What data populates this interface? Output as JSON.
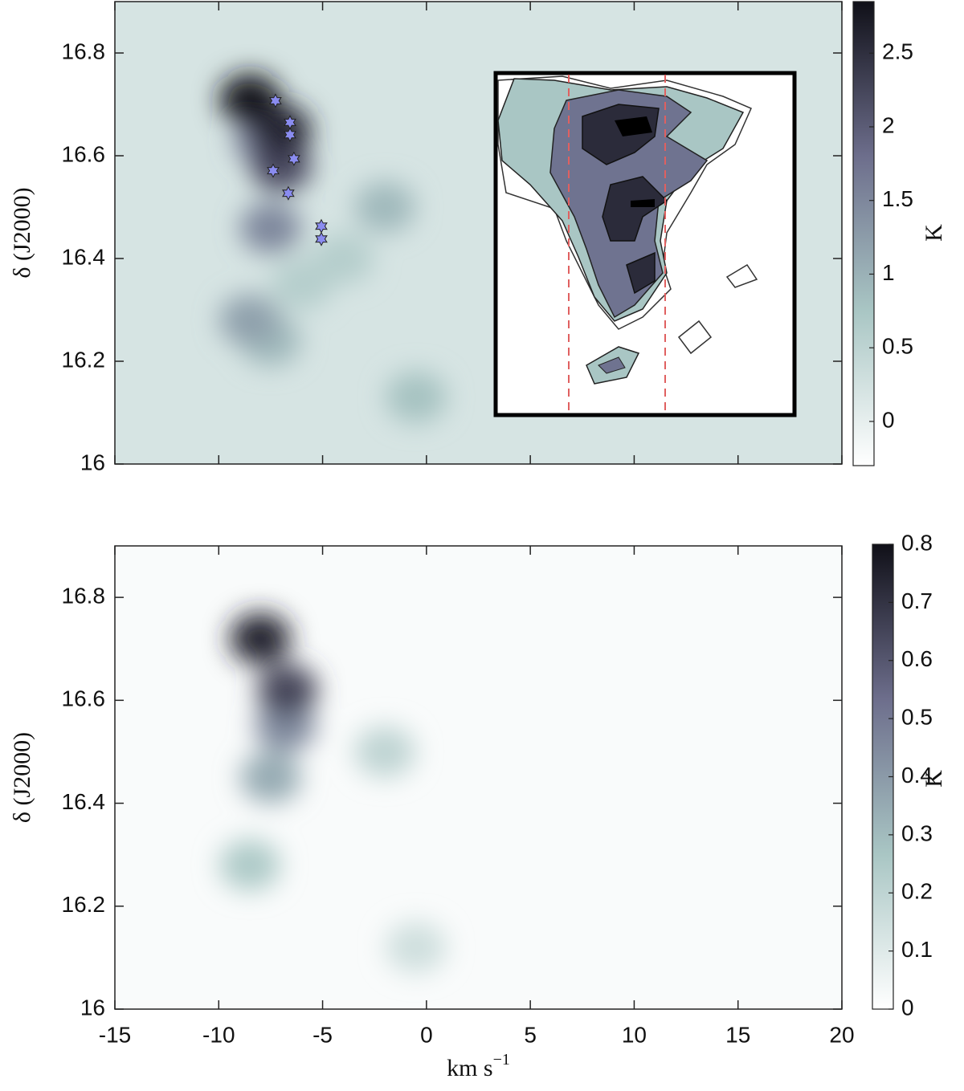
{
  "chart_data": [
    {
      "type": "heatmap",
      "ylabel": "δ (J2000)",
      "cbar_label": "K",
      "xlim": [
        -15,
        20
      ],
      "ylim": [
        16,
        16.9
      ],
      "xticks": [
        -15,
        -10,
        -5,
        0,
        5,
        10,
        15,
        20
      ],
      "yticks": [
        16,
        16.2,
        16.4,
        16.6,
        16.8
      ],
      "clim": [
        -0.3,
        2.85
      ],
      "cticks": [
        0,
        0.5,
        1,
        1.5,
        2,
        2.5
      ],
      "colormap": [
        "#ffffff",
        "#a9c6c4",
        "#6d6e8c",
        "#101018"
      ],
      "background": 0.2,
      "blobs": [
        {
          "x": -4,
          "y": 16.4,
          "value": 0.6
        },
        {
          "x": -6,
          "y": 16.35,
          "value": 0.6
        },
        {
          "x": -0.5,
          "y": 16.13,
          "value": 0.8
        },
        {
          "x": -2,
          "y": 16.5,
          "value": 0.9
        },
        {
          "x": -7.5,
          "y": 16.24,
          "value": 0.9
        },
        {
          "x": -8.5,
          "y": 16.28,
          "value": 1.2
        },
        {
          "x": -7.5,
          "y": 16.46,
          "value": 1.5
        },
        {
          "x": -7.8,
          "y": 16.63,
          "value": 1.6
        },
        {
          "x": -7,
          "y": 16.58,
          "value": 2.2
        },
        {
          "x": -7,
          "y": 16.65,
          "value": 2.6
        },
        {
          "x": -8.5,
          "y": 16.71,
          "value": 2.8
        }
      ],
      "stars": {
        "color": "#8a8cf0",
        "x": [
          -7.27,
          -6.57,
          -6.57,
          -6.38,
          -7.38,
          -6.65,
          -5.06,
          -5.06
        ],
        "y": [
          16.707,
          16.665,
          16.641,
          16.594,
          16.571,
          16.527,
          16.463,
          16.438
        ]
      }
    },
    {
      "type": "heatmap",
      "ylabel": "δ (J2000)",
      "cbar_label": "K",
      "xlabel": "km s",
      "xlabel_sup": "−1",
      "xlim": [
        -15,
        20
      ],
      "ylim": [
        16,
        16.9
      ],
      "xticks": [
        -15,
        -10,
        -5,
        0,
        5,
        10,
        15,
        20
      ],
      "yticks": [
        16,
        16.2,
        16.4,
        16.6,
        16.8
      ],
      "clim": [
        0,
        0.8
      ],
      "cticks": [
        0,
        0.1,
        0.2,
        0.3,
        0.4,
        0.5,
        0.6,
        0.7,
        0.8
      ],
      "colormap": [
        "#ffffff",
        "#a9c6c4",
        "#6d6e8c",
        "#101018"
      ],
      "background": 0.02,
      "blobs": [
        {
          "x": -0.5,
          "y": 16.12,
          "value": 0.15
        },
        {
          "x": -2,
          "y": 16.5,
          "value": 0.2
        },
        {
          "x": -8.5,
          "y": 16.28,
          "value": 0.25
        },
        {
          "x": -7.5,
          "y": 16.45,
          "value": 0.35
        },
        {
          "x": -6.8,
          "y": 16.55,
          "value": 0.45
        },
        {
          "x": -6.7,
          "y": 16.62,
          "value": 0.65
        },
        {
          "x": -8,
          "y": 16.72,
          "value": 0.75
        }
      ]
    }
  ]
}
